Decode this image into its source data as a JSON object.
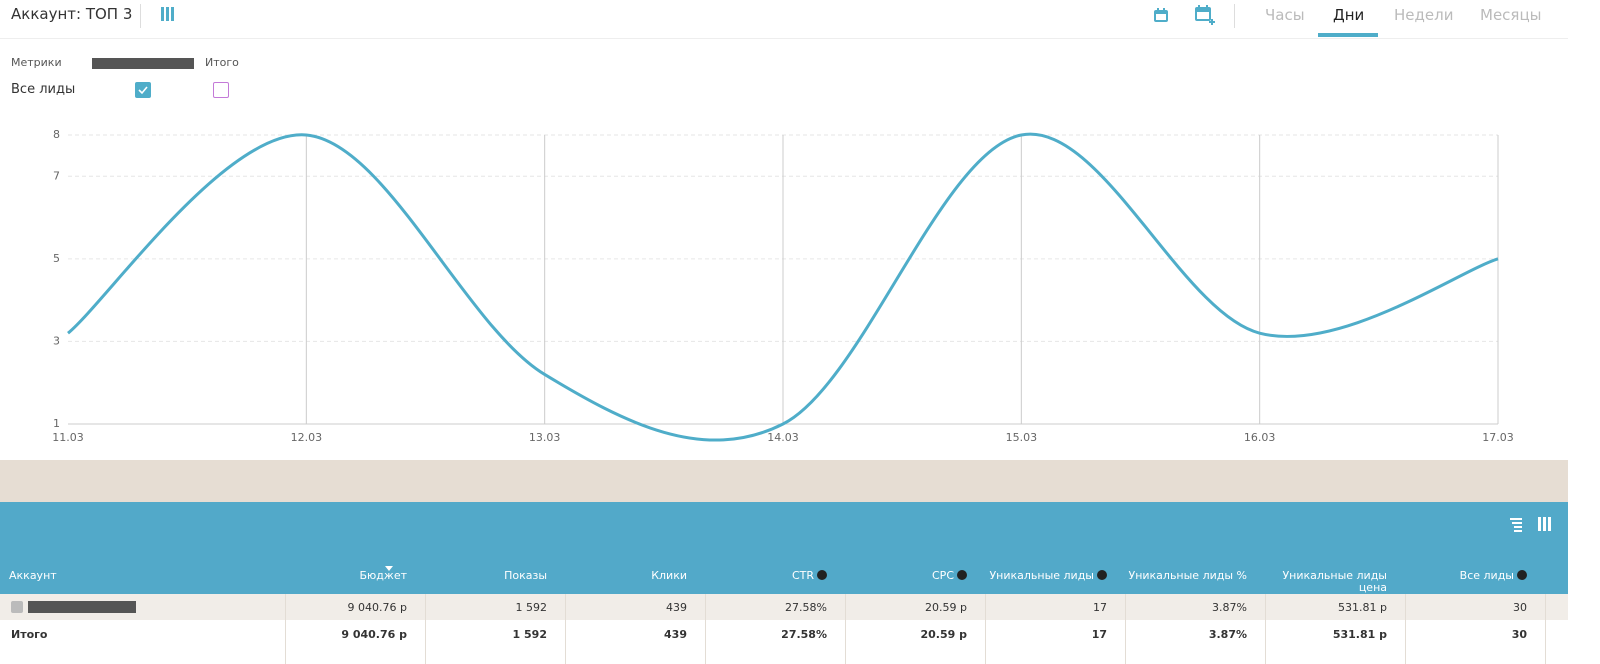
{
  "header": {
    "title": "Аккаунт: ТОП 3",
    "tabs": [
      "Часы",
      "Дни",
      "Недели",
      "Месяцы"
    ],
    "active_tab": 1
  },
  "filters": {
    "metrics_label": "Метрики",
    "total_label": "Итого",
    "metric": "Все лиды",
    "metric_checked": true,
    "total_checked": false
  },
  "chart_data": {
    "type": "line",
    "categories": [
      "11.03",
      "12.03",
      "13.03",
      "14.03",
      "15.03",
      "16.03",
      "17.03"
    ],
    "values": [
      3.2,
      8,
      2.2,
      1,
      8,
      3.2,
      5
    ],
    "color": "#4fadc9",
    "ylim": [
      1,
      8
    ],
    "yticks": [
      1,
      3,
      5,
      7,
      8
    ],
    "grid": true
  },
  "table": {
    "columns": [
      "Аккаунт",
      "Бюджет",
      "Показы",
      "Клики",
      "CTR",
      "CPC",
      "Уникальные лиды",
      "Уникальные лиды %",
      "Уникальные лиды цена",
      "Все лиды"
    ],
    "help": [
      false,
      false,
      false,
      false,
      true,
      true,
      true,
      false,
      false,
      true
    ],
    "sorted_column": 1,
    "rows": [
      {
        "cells": [
          "9 040.76 р",
          "1 592",
          "439",
          "27.58%",
          "20.59 р",
          "17",
          "3.87%",
          "531.81 р",
          "30"
        ]
      },
      {
        "label": "Итого",
        "cells": [
          "9 040.76 р",
          "1 592",
          "439",
          "27.58%",
          "20.59 р",
          "17",
          "3.87%",
          "531.81 р",
          "30"
        ]
      }
    ]
  }
}
